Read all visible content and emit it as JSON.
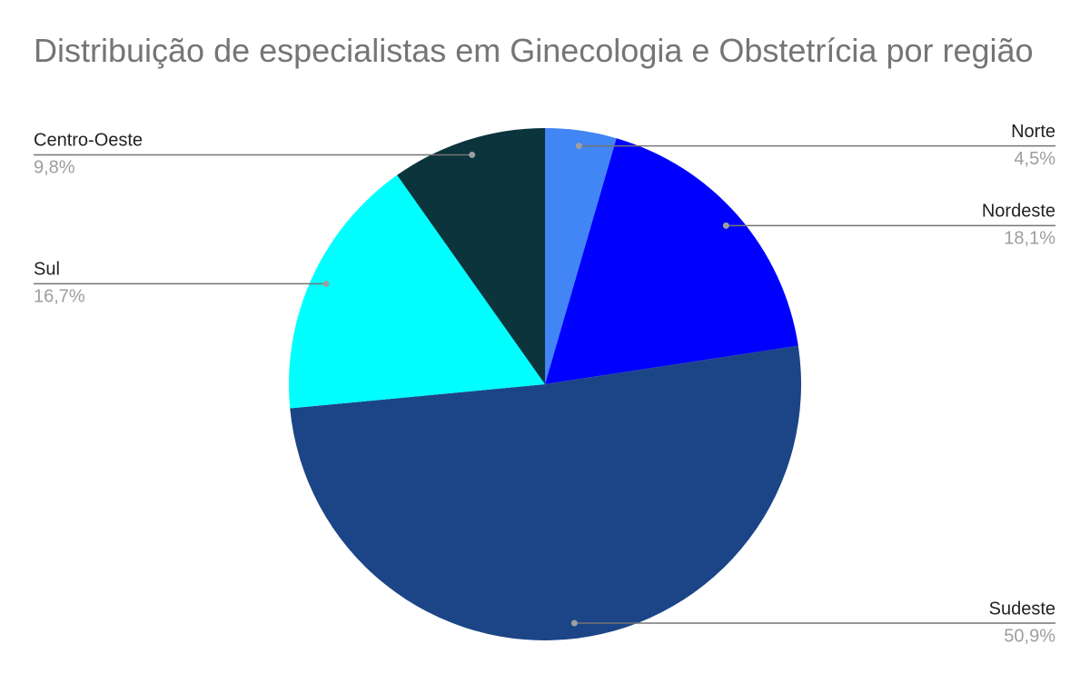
{
  "chart_data": {
    "type": "pie",
    "title": "Distribuição de especialistas em Ginecologia e Obstetrícia por região",
    "categories": [
      "Norte",
      "Nordeste",
      "Sudeste",
      "Sul",
      "Centro-Oeste"
    ],
    "values": [
      4.5,
      18.1,
      50.9,
      16.7,
      9.8
    ],
    "value_labels": [
      "4,5%",
      "18,1%",
      "50,9%",
      "16,7%",
      "9,8%"
    ],
    "colors": [
      "#4285f4",
      "#0000ff",
      "#1c4587",
      "#00ffff",
      "#0c343d"
    ]
  }
}
